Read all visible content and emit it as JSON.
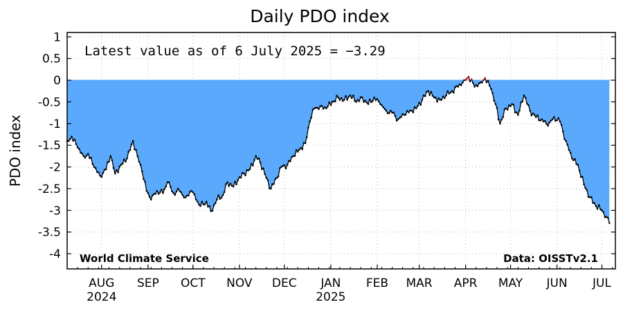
{
  "chart_data": {
    "type": "area",
    "title": "Daily PDO index",
    "ylabel": "PDO index",
    "xlabel": "",
    "ylim": [
      -4.35,
      1.1
    ],
    "yticks": [
      1,
      0.5,
      0,
      -0.5,
      -1,
      -1.5,
      -2,
      -2.5,
      -3,
      -3.5,
      -4
    ],
    "ytick_labels": [
      "1",
      "0.5",
      "0",
      "-0.5",
      "-1",
      "-1.5",
      "-2",
      "-2.5",
      "-3",
      "-3.5",
      "-4"
    ],
    "xlim": [
      "2024-07-09",
      "2025-07-10"
    ],
    "xticks": [
      {
        "date": "2024-08-01",
        "label": "AUG",
        "sublabel": "2024"
      },
      {
        "date": "2024-09-01",
        "label": "SEP",
        "sublabel": ""
      },
      {
        "date": "2024-10-01",
        "label": "OCT",
        "sublabel": ""
      },
      {
        "date": "2024-11-01",
        "label": "NOV",
        "sublabel": ""
      },
      {
        "date": "2024-12-01",
        "label": "DEC",
        "sublabel": ""
      },
      {
        "date": "2025-01-01",
        "label": "JAN",
        "sublabel": "2025"
      },
      {
        "date": "2025-02-01",
        "label": "FEB",
        "sublabel": ""
      },
      {
        "date": "2025-03-01",
        "label": "MAR",
        "sublabel": ""
      },
      {
        "date": "2025-04-01",
        "label": "APR",
        "sublabel": ""
      },
      {
        "date": "2025-05-01",
        "label": "MAY",
        "sublabel": ""
      },
      {
        "date": "2025-06-01",
        "label": "JUN",
        "sublabel": ""
      },
      {
        "date": "2025-07-01",
        "label": "JUL",
        "sublabel": ""
      }
    ],
    "grid": true,
    "annotation": "Latest value as of 6 July 2025 = −3.29",
    "credit_left": "World Climate Service",
    "credit_right": "Data: OISSTv2.1",
    "colors": {
      "fill": "#5aa9fc",
      "line": "#000000",
      "points": "#000000",
      "positive_line": "#cc0000",
      "grid": "#b4b4b4"
    },
    "series": [
      {
        "anchors": [
          [
            "2024-07-09",
            -1.4
          ],
          [
            "2024-07-12",
            -1.3
          ],
          [
            "2024-07-16",
            -1.55
          ],
          [
            "2024-07-20",
            -1.75
          ],
          [
            "2024-07-23",
            -1.7
          ],
          [
            "2024-07-27",
            -2.0
          ],
          [
            "2024-07-31",
            -2.2
          ],
          [
            "2024-08-04",
            -2.05
          ],
          [
            "2024-08-07",
            -1.75
          ],
          [
            "2024-08-10",
            -2.15
          ],
          [
            "2024-08-14",
            -1.95
          ],
          [
            "2024-08-18",
            -1.8
          ],
          [
            "2024-08-22",
            -1.4
          ],
          [
            "2024-08-25",
            -1.75
          ],
          [
            "2024-08-28",
            -2.1
          ],
          [
            "2024-08-31",
            -2.55
          ],
          [
            "2024-09-03",
            -2.75
          ],
          [
            "2024-09-07",
            -2.55
          ],
          [
            "2024-09-11",
            -2.6
          ],
          [
            "2024-09-14",
            -2.35
          ],
          [
            "2024-09-18",
            -2.6
          ],
          [
            "2024-09-22",
            -2.55
          ],
          [
            "2024-09-26",
            -2.7
          ],
          [
            "2024-09-30",
            -2.55
          ],
          [
            "2024-10-03",
            -2.75
          ],
          [
            "2024-10-06",
            -2.9
          ],
          [
            "2024-10-10",
            -2.8
          ],
          [
            "2024-10-13",
            -3.02
          ],
          [
            "2024-10-17",
            -2.75
          ],
          [
            "2024-10-21",
            -2.65
          ],
          [
            "2024-10-24",
            -2.35
          ],
          [
            "2024-10-28",
            -2.45
          ],
          [
            "2024-10-31",
            -2.3
          ],
          [
            "2024-11-04",
            -2.15
          ],
          [
            "2024-11-08",
            -2.05
          ],
          [
            "2024-11-12",
            -1.75
          ],
          [
            "2024-11-15",
            -1.9
          ],
          [
            "2024-11-19",
            -2.25
          ],
          [
            "2024-11-22",
            -2.5
          ],
          [
            "2024-11-26",
            -2.25
          ],
          [
            "2024-11-29",
            -2.0
          ],
          [
            "2024-12-03",
            -1.95
          ],
          [
            "2024-12-07",
            -1.75
          ],
          [
            "2024-12-11",
            -1.6
          ],
          [
            "2024-12-15",
            -1.45
          ],
          [
            "2024-12-18",
            -0.95
          ],
          [
            "2024-12-21",
            -0.65
          ],
          [
            "2024-12-25",
            -0.6
          ],
          [
            "2024-12-29",
            -0.65
          ],
          [
            "2025-01-02",
            -0.5
          ],
          [
            "2025-01-06",
            -0.4
          ],
          [
            "2025-01-10",
            -0.45
          ],
          [
            "2025-01-14",
            -0.35
          ],
          [
            "2025-01-18",
            -0.5
          ],
          [
            "2025-01-22",
            -0.4
          ],
          [
            "2025-01-26",
            -0.55
          ],
          [
            "2025-01-30",
            -0.4
          ],
          [
            "2025-02-03",
            -0.55
          ],
          [
            "2025-02-07",
            -0.7
          ],
          [
            "2025-02-11",
            -0.75
          ],
          [
            "2025-02-15",
            -0.9
          ],
          [
            "2025-02-19",
            -0.8
          ],
          [
            "2025-02-23",
            -0.7
          ],
          [
            "2025-02-27",
            -0.65
          ],
          [
            "2025-03-03",
            -0.45
          ],
          [
            "2025-03-07",
            -0.25
          ],
          [
            "2025-03-11",
            -0.4
          ],
          [
            "2025-03-15",
            -0.45
          ],
          [
            "2025-03-19",
            -0.35
          ],
          [
            "2025-03-23",
            -0.25
          ],
          [
            "2025-03-27",
            -0.15
          ],
          [
            "2025-03-31",
            0.0
          ],
          [
            "2025-04-03",
            0.08
          ],
          [
            "2025-04-07",
            -0.15
          ],
          [
            "2025-04-11",
            -0.05
          ],
          [
            "2025-04-14",
            0.05
          ],
          [
            "2025-04-18",
            -0.2
          ],
          [
            "2025-04-21",
            -0.55
          ],
          [
            "2025-04-24",
            -1.0
          ],
          [
            "2025-04-28",
            -0.65
          ],
          [
            "2025-05-02",
            -0.55
          ],
          [
            "2025-05-06",
            -0.8
          ],
          [
            "2025-05-10",
            -0.35
          ],
          [
            "2025-05-14",
            -0.7
          ],
          [
            "2025-05-18",
            -0.85
          ],
          [
            "2025-05-22",
            -0.9
          ],
          [
            "2025-05-26",
            -1.05
          ],
          [
            "2025-05-30",
            -0.85
          ],
          [
            "2025-06-03",
            -0.95
          ],
          [
            "2025-06-07",
            -1.4
          ],
          [
            "2025-06-11",
            -1.8
          ],
          [
            "2025-06-15",
            -1.95
          ],
          [
            "2025-06-19",
            -2.4
          ],
          [
            "2025-06-23",
            -2.7
          ],
          [
            "2025-06-27",
            -2.9
          ],
          [
            "2025-07-01",
            -3.0
          ],
          [
            "2025-07-04",
            -3.15
          ],
          [
            "2025-07-06",
            -3.29
          ]
        ]
      }
    ]
  }
}
